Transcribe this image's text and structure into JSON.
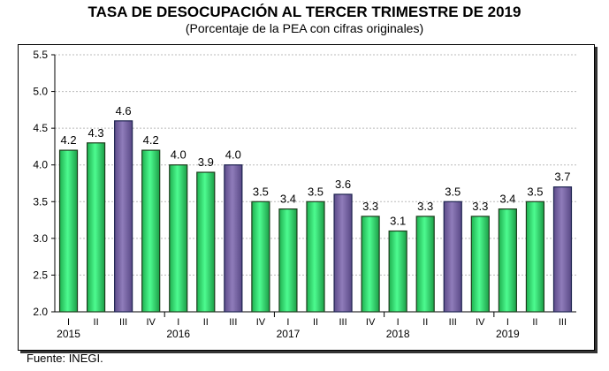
{
  "chart_data": {
    "type": "bar",
    "title": "TASA DE DESOCUPACIÓN AL TERCER TRIMESTRE DE 2019",
    "subtitle": "(Porcentaje de la PEA con cifras originales)",
    "categories": [
      "I",
      "II",
      "III",
      "IV",
      "I",
      "II",
      "III",
      "IV",
      "I",
      "II",
      "III",
      "IV",
      "I",
      "II",
      "III",
      "IV",
      "I",
      "II",
      "III"
    ],
    "years": [
      {
        "label": "2015",
        "start": 0
      },
      {
        "label": "2016",
        "start": 4
      },
      {
        "label": "2017",
        "start": 8
      },
      {
        "label": "2018",
        "start": 12
      },
      {
        "label": "2019",
        "start": 16
      }
    ],
    "values": [
      4.2,
      4.3,
      4.6,
      4.2,
      4.0,
      3.9,
      4.0,
      3.5,
      3.4,
      3.5,
      3.6,
      3.3,
      3.1,
      3.3,
      3.5,
      3.3,
      3.4,
      3.5,
      3.7
    ],
    "value_labels": [
      "4.2",
      "4.3",
      "4.6",
      "4.2",
      "4.0",
      "3.9",
      "4.0",
      "3.5",
      "3.4",
      "3.5",
      "3.6",
      "3.3",
      "3.1",
      "3.3",
      "3.5",
      "3.3",
      "3.4",
      "3.5",
      "3.7"
    ],
    "ylim": [
      2.0,
      5.5
    ],
    "yticks": [
      "2.0",
      "2.5",
      "3.0",
      "3.5",
      "4.0",
      "4.5",
      "5.0",
      "5.5"
    ],
    "grid": true,
    "colors": {
      "default": "#33e57a",
      "highlight_III": "#7e6aa9"
    },
    "source": "Fuente: INEGI."
  }
}
